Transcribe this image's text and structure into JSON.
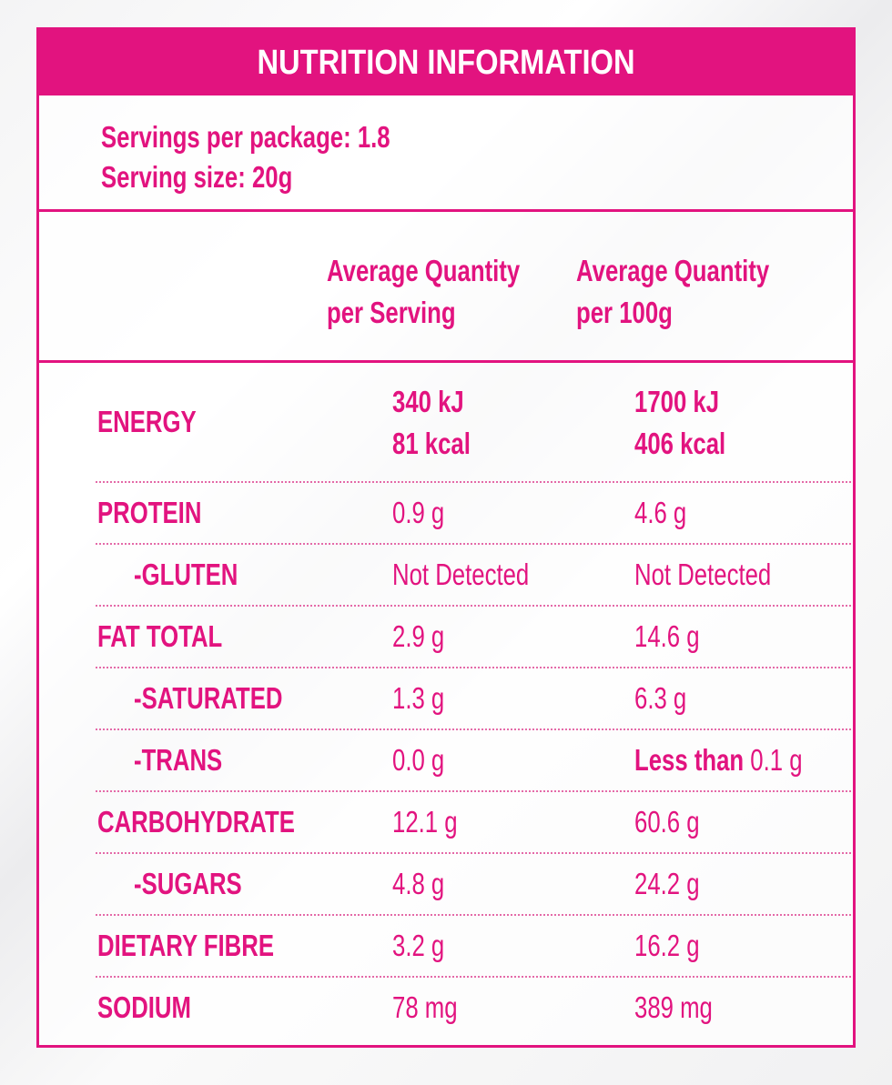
{
  "title": "NUTRITION INFORMATION",
  "servings": {
    "per_package": "Servings per package: 1.8",
    "size": "Serving size: 20g"
  },
  "columns": {
    "per_serving_line1": "Average Quantity",
    "per_serving_line2": "per Serving",
    "per_100g_line1": "Average Quantity",
    "per_100g_line2": "per 100g"
  },
  "rows": [
    {
      "label": "ENERGY",
      "per_serving": [
        "340 kJ",
        "81 kcal"
      ],
      "per_100g": [
        "1700 kJ",
        "406 kcal"
      ]
    },
    {
      "label": "PROTEIN",
      "per_serving": "0.9 g",
      "per_100g": "4.6 g"
    },
    {
      "label": "-GLUTEN",
      "per_serving": "Not Detected",
      "per_100g": "Not Detected"
    },
    {
      "label": "FAT TOTAL",
      "per_serving": "2.9 g",
      "per_100g": "14.6 g"
    },
    {
      "label": "-SATURATED",
      "per_serving": "1.3 g",
      "per_100g": "6.3 g"
    },
    {
      "label": "-TRANS",
      "per_serving": "0.0 g",
      "per_100g_prefix": "Less than",
      "per_100g_suffix": "0.1 g"
    },
    {
      "label": "CARBOHYDRATE",
      "per_serving": "12.1 g",
      "per_100g": "60.6 g"
    },
    {
      "label": "-SUGARS",
      "per_serving": "4.8 g",
      "per_100g": "24.2 g"
    },
    {
      "label": "DIETARY FIBRE",
      "per_serving": "3.2 g",
      "per_100g": "16.2 g"
    },
    {
      "label": "SODIUM",
      "per_serving": "78 mg",
      "per_100g": "389 mg"
    }
  ],
  "colors": {
    "accent": "#e2137f",
    "background": "#f4f4f5"
  }
}
